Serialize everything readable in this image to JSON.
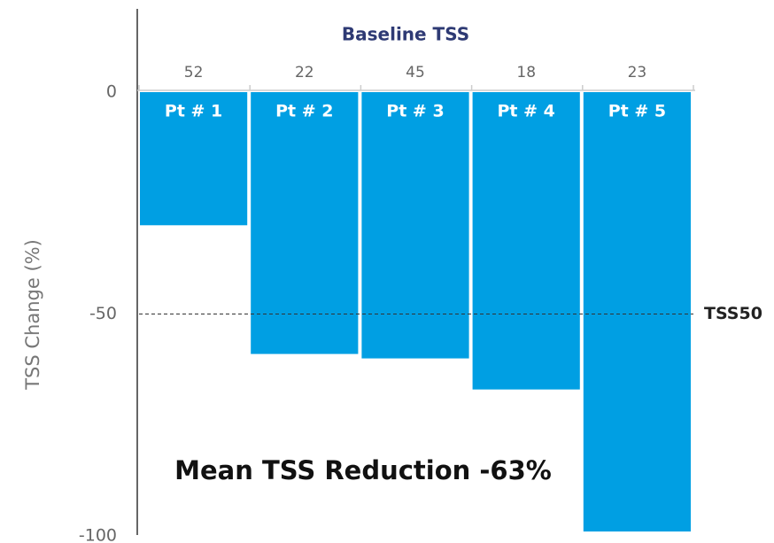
{
  "chart_data": {
    "type": "bar",
    "y_label": "TSS Change (%)",
    "annotation": "Mean TSS Reduction -63%",
    "top_label": "Baseline TSS",
    "categories": [
      "Pt # 1",
      "Pt # 2",
      "Pt # 3",
      "Pt # 4",
      "Pt # 5"
    ],
    "baseline_values": [
      52,
      22,
      45,
      18,
      23
    ],
    "values": [
      -30,
      -59,
      -60,
      -67,
      -99
    ],
    "color": "#009fe3",
    "ylim": [
      -100,
      0
    ],
    "yticks": [
      0,
      -50,
      -100
    ],
    "reference_line": {
      "value": -50,
      "label": "TSS50"
    }
  }
}
